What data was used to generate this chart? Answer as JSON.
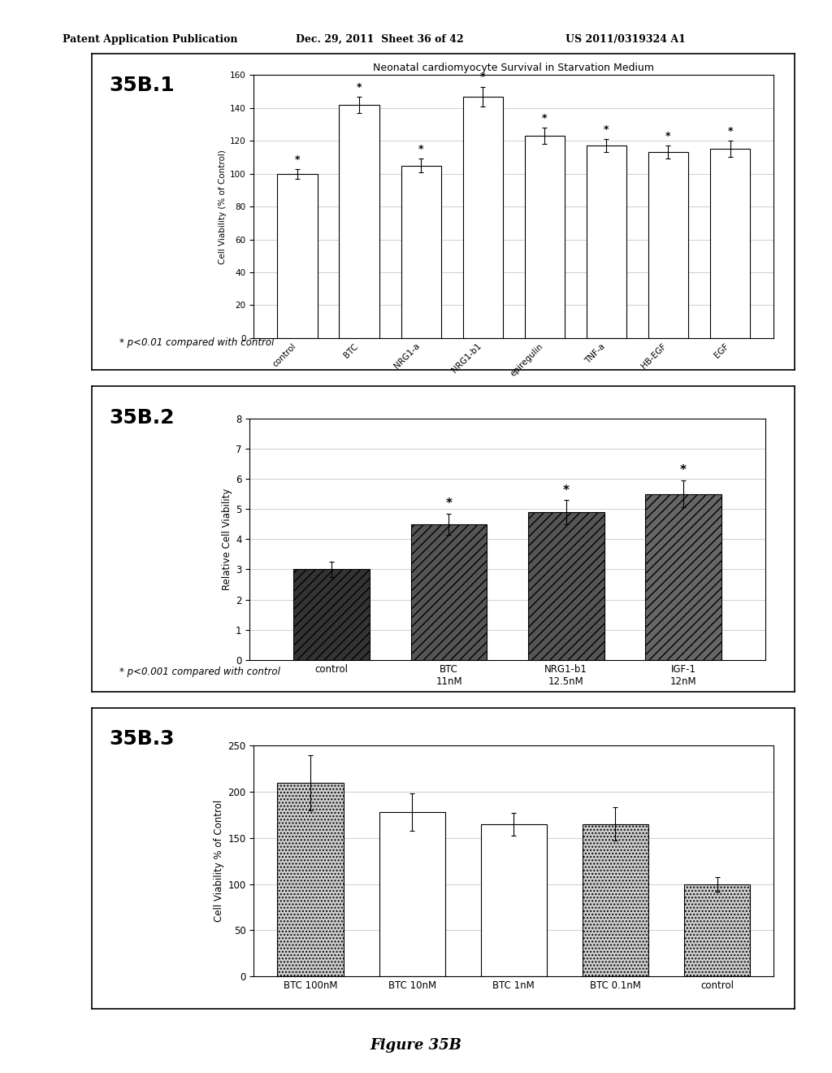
{
  "header_left": "Patent Application Publication",
  "header_mid": "Dec. 29, 2011  Sheet 36 of 42",
  "header_right": "US 2011/0319324 A1",
  "figure_label": "Figure 35B",
  "panel1": {
    "label": "35B.1",
    "title": "Neonatal cardiomyocyte Survival in Starvation Medium",
    "ylabel": "Cell Viability (% of Control)",
    "categories": [
      "control",
      "BTC",
      "NRG1-a",
      "NRG1-b1",
      "epiregulin",
      "TNF-a",
      "HB-EGF",
      "EGF"
    ],
    "values": [
      100,
      142,
      105,
      147,
      123,
      117,
      113,
      115
    ],
    "errors": [
      3,
      5,
      4,
      6,
      5,
      4,
      4,
      5
    ],
    "starred": [
      true,
      true,
      true,
      true,
      true,
      true,
      true,
      true
    ],
    "ylim": [
      0,
      160
    ],
    "yticks": [
      0,
      20,
      40,
      60,
      80,
      100,
      120,
      140,
      160
    ],
    "footnote": "* p<0.01 compared with control"
  },
  "panel2": {
    "label": "35B.2",
    "ylabel": "Relative Cell Viability",
    "categories": [
      "control",
      "BTC\n11nM",
      "NRG1-b1\n12.5nM",
      "IGF-1\n12nM"
    ],
    "values": [
      3.0,
      4.5,
      4.9,
      5.5
    ],
    "errors": [
      0.25,
      0.35,
      0.4,
      0.45
    ],
    "starred": [
      false,
      true,
      true,
      true
    ],
    "ylim": [
      0,
      8
    ],
    "yticks": [
      0,
      1,
      2,
      3,
      4,
      5,
      6,
      7,
      8
    ],
    "bar_colors": [
      "#333333",
      "#555555",
      "#555555",
      "#666666"
    ],
    "hatch_patterns": [
      "///",
      "///",
      "///",
      "///"
    ],
    "footnote": "* p<0.001 compared with control"
  },
  "panel3": {
    "label": "35B.3",
    "ylabel": "Cell Viability % of Control",
    "categories": [
      "BTC 100nM",
      "BTC 10nM",
      "BTC 1nM",
      "BTC 0.1nM",
      "control"
    ],
    "values": [
      210,
      178,
      165,
      165,
      100
    ],
    "errors": [
      30,
      20,
      12,
      18,
      8
    ],
    "ylim": [
      0,
      250
    ],
    "yticks": [
      0,
      50,
      100,
      150,
      200,
      250
    ],
    "bar_colors": [
      "#cccccc",
      "white",
      "white",
      "#cccccc",
      "#cccccc"
    ],
    "hatch_patterns": [
      "....",
      "",
      "",
      "....",
      "...."
    ]
  },
  "bg_color": "#ffffff"
}
